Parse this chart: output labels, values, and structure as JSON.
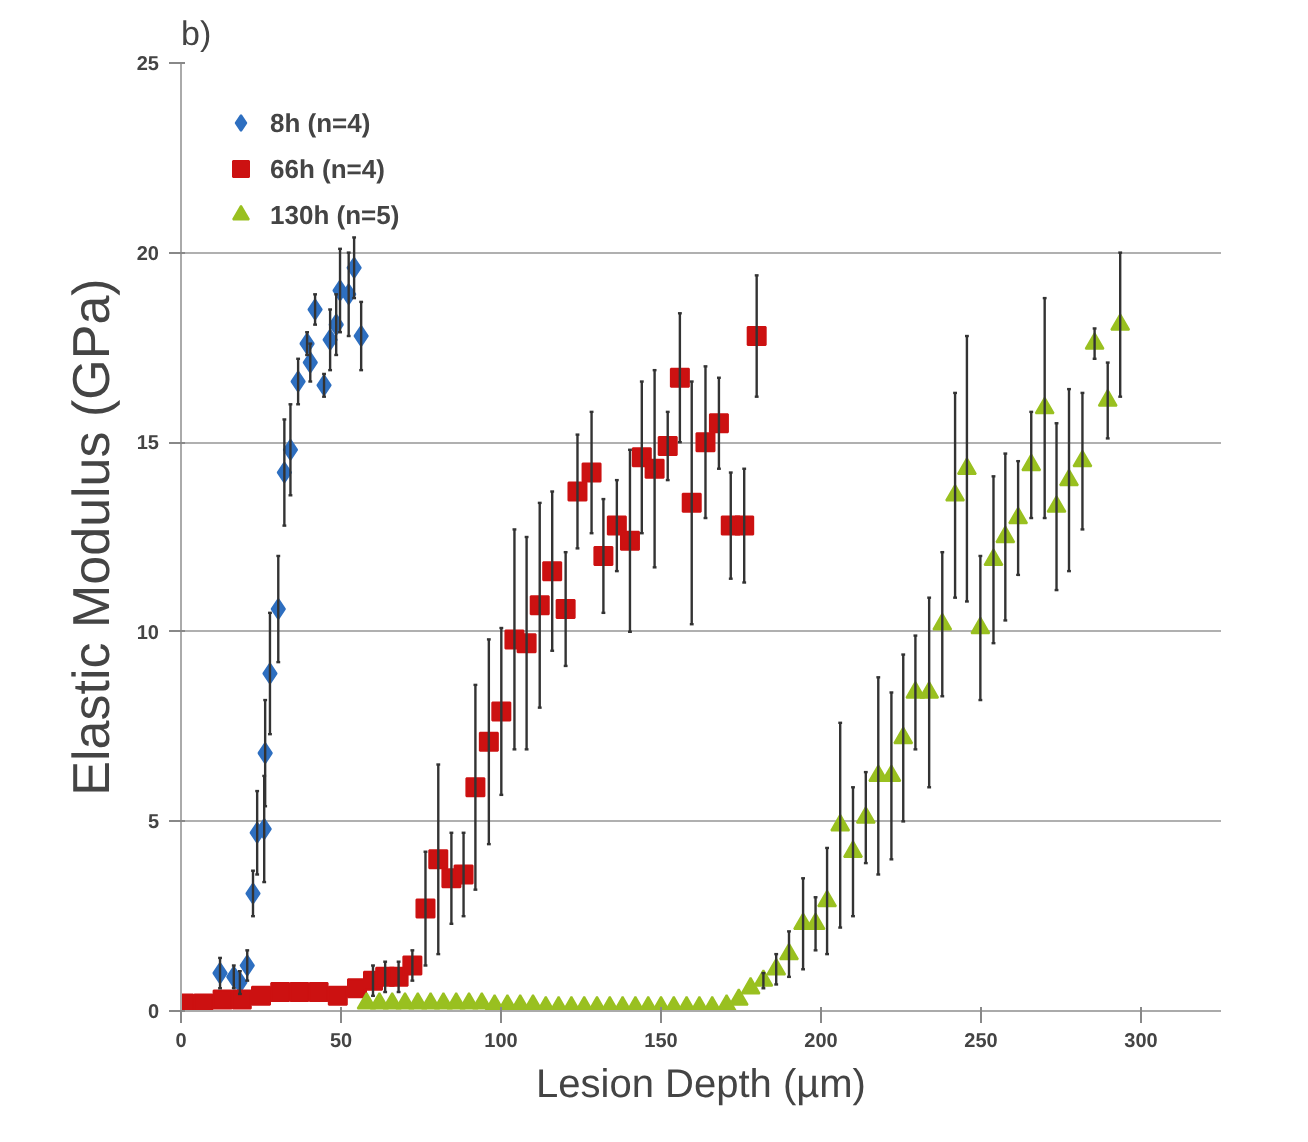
{
  "chart_data": {
    "type": "scatter",
    "title": "b)",
    "xlabel": "Lesion Depth (µm)",
    "ylabel": "Elastic Modulus (GPa)",
    "xlim": [
      0,
      325
    ],
    "ylim": [
      0,
      25
    ],
    "xticks": [
      0,
      50,
      100,
      150,
      200,
      250,
      300
    ],
    "yticks": [
      0,
      5,
      10,
      15,
      20,
      25
    ],
    "grid": "y",
    "legend": "top left",
    "series": [
      {
        "name": "8h (n=4)",
        "color": "#2e6fc0",
        "marker": "diamond",
        "x": [
          12.2,
          16.5,
          18.4,
          20.7,
          22.5,
          23.8,
          26.0,
          26.3,
          27.8,
          30.4,
          32.3,
          34.2,
          36.6,
          39.4,
          40.4,
          41.9,
          44.7,
          46.6,
          48.5,
          49.7,
          52.4,
          54.1,
          56.3
        ],
        "values": [
          1.0,
          0.9,
          0.75,
          1.2,
          3.1,
          4.7,
          4.8,
          6.8,
          8.9,
          10.6,
          14.2,
          14.8,
          16.6,
          17.6,
          17.1,
          18.5,
          16.5,
          17.7,
          18.1,
          19.0,
          18.9,
          19.6,
          17.8
        ],
        "errors": [
          0.4,
          0.3,
          0.3,
          0.4,
          0.6,
          1.1,
          1.4,
          1.4,
          1.6,
          1.4,
          1.4,
          1.2,
          0.6,
          0.3,
          0.5,
          0.4,
          0.3,
          0.8,
          0.8,
          1.1,
          1.1,
          0.8,
          0.9
        ]
      },
      {
        "name": "66h (n=4)",
        "color": "#cc1111",
        "marker": "square",
        "x": [
          1,
          7,
          13,
          19,
          25,
          31,
          37,
          43,
          49,
          55,
          60,
          63.8,
          68,
          72.3,
          76.4,
          80.4,
          84.5,
          88.3,
          92,
          96.2,
          100.1,
          104.2,
          108,
          112.1,
          116,
          120.2,
          123.9,
          128.3,
          132,
          136.2,
          140.3,
          144,
          148,
          152.1,
          155.9,
          159.6,
          163.9,
          168.1,
          171.8,
          176,
          179.9
        ],
        "values": [
          0.2,
          0.2,
          0.3,
          0.3,
          0.4,
          0.5,
          0.5,
          0.5,
          0.4,
          0.6,
          0.8,
          0.9,
          0.9,
          1.2,
          2.7,
          4.0,
          3.5,
          3.6,
          5.9,
          7.1,
          7.9,
          9.8,
          9.7,
          10.7,
          11.6,
          10.6,
          13.7,
          14.2,
          12.0,
          12.8,
          12.4,
          14.6,
          14.3,
          14.9,
          16.7,
          13.4,
          15.0,
          15.5,
          12.8,
          12.8,
          17.8
        ],
        "errors": [
          null,
          null,
          null,
          null,
          null,
          null,
          null,
          null,
          null,
          null,
          0.4,
          0.4,
          0.4,
          0.4,
          1.5,
          2.5,
          1.2,
          1.1,
          2.7,
          2.7,
          2.2,
          2.9,
          2.8,
          2.7,
          2.1,
          1.5,
          1.5,
          1.6,
          1.5,
          1.2,
          2.4,
          2.0,
          2.6,
          0.9,
          1.7,
          3.2,
          2.0,
          1.2,
          1.4,
          1.5,
          1.6
        ]
      },
      {
        "name": "130h (n=5)",
        "color": "#99c020",
        "marker": "triangle",
        "x": [
          58,
          62,
          66,
          70,
          74,
          78,
          82,
          86,
          90,
          94,
          98,
          102,
          106,
          110,
          114,
          118,
          122,
          126,
          130,
          134,
          138,
          142,
          146,
          150,
          154,
          158,
          162,
          166,
          170.5,
          174.3,
          178,
          182,
          186,
          190,
          194.4,
          198.3,
          201.9,
          206,
          210,
          214,
          217.9,
          222,
          225.7,
          229.5,
          233.8,
          237.9,
          241.9,
          245.6,
          249.8,
          253.9,
          257.6,
          261.6,
          265.7,
          269.9,
          273.6,
          277.5,
          281.7,
          285.5,
          289.6,
          293.5
        ],
        "values": [
          0.2,
          0.2,
          0.2,
          0.2,
          0.2,
          0.2,
          0.2,
          0.2,
          0.2,
          0.2,
          0.15,
          0.15,
          0.15,
          0.15,
          0.1,
          0.1,
          0.1,
          0.1,
          0.1,
          0.1,
          0.1,
          0.1,
          0.1,
          0.1,
          0.1,
          0.1,
          0.1,
          0.1,
          0.15,
          0.3,
          0.6,
          0.8,
          1.1,
          1.5,
          2.3,
          2.3,
          2.9,
          4.9,
          4.2,
          5.1,
          6.2,
          6.2,
          7.2,
          8.4,
          8.4,
          10.2,
          13.6,
          14.3,
          10.1,
          11.9,
          12.5,
          13.0,
          14.4,
          15.9,
          13.3,
          14.0,
          14.5,
          17.6,
          16.1,
          18.1
        ],
        "errors": [
          null,
          null,
          null,
          null,
          null,
          null,
          null,
          null,
          null,
          null,
          null,
          null,
          null,
          null,
          null,
          null,
          null,
          null,
          null,
          null,
          null,
          null,
          null,
          null,
          null,
          null,
          null,
          null,
          null,
          null,
          null,
          0.2,
          0.4,
          0.6,
          1.2,
          0.7,
          1.4,
          2.7,
          1.7,
          1.2,
          2.6,
          2.2,
          2.2,
          1.5,
          2.5,
          1.9,
          2.7,
          3.5,
          1.9,
          2.2,
          2.2,
          1.5,
          1.4,
          2.9,
          2.2,
          2.4,
          1.8,
          0.4,
          1.0,
          1.9
        ]
      }
    ]
  }
}
